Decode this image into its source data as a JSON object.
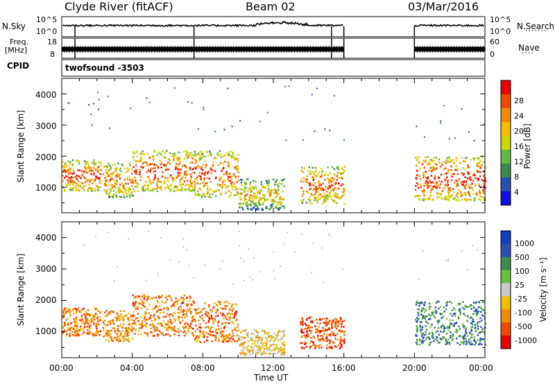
{
  "header": {
    "station": "Clyde River (fitACF)",
    "beam": "Beam 02",
    "date": "03/Mar/2016"
  },
  "panels": {
    "nsky": {
      "left_label": "N.Sky",
      "left_ticks": [
        "10^5",
        "10^0"
      ],
      "right_label": "N.Search",
      "right_ticks": [
        "10^5",
        "10^0"
      ]
    },
    "freq": {
      "left_label_1": "Freq.",
      "left_label_2": "[MHz]",
      "left_ticks": [
        "18",
        "8"
      ],
      "right_label": "Nave",
      "right_ticks": [
        "60",
        "0"
      ]
    },
    "cpid": {
      "label": "CPID",
      "value": "twofsound  -3503"
    }
  },
  "colors": {
    "power_scale": [
      "#1010e0",
      "#2a4fb0",
      "#3d8a4e",
      "#66b84a",
      "#c8d800",
      "#f0c000",
      "#f08a00",
      "#f04a00",
      "#e80000"
    ],
    "velocity_scale": [
      "#e80000",
      "#f04a00",
      "#f08a00",
      "#f0c000",
      "#c8c8c8",
      "#66c040",
      "#3d8a4e",
      "#2a4fb0",
      "#1040c0"
    ]
  },
  "chart_data": [
    {
      "type": "heatmap",
      "title": "Power",
      "ylabel": "Slant Range [km]",
      "xlabel": "Time UT",
      "x_tick_labels": [
        "00:00",
        "04:00",
        "08:00",
        "12:00",
        "16:00",
        "20:00",
        "00:00"
      ],
      "y_tick_labels": [
        "1000",
        "2000",
        "3000",
        "4000"
      ],
      "xlim_hours": [
        0,
        24
      ],
      "ylim_km": [
        180,
        4500
      ],
      "colorbar_label": "Power [dB]",
      "colorbar_ticks": [
        "4",
        "8",
        "12",
        "16",
        "20",
        "24",
        "28"
      ],
      "colorbar_range": [
        0,
        30
      ],
      "data_gaps_hours": [
        [
          16,
          20
        ]
      ],
      "scatter_regions": [
        {
          "x": [
            0.0,
            2.2
          ],
          "y": [
            900,
            1900
          ],
          "level": 0.75
        },
        {
          "x": [
            2.3,
            4.0
          ],
          "y": [
            700,
            1800
          ],
          "level": 0.6
        },
        {
          "x": [
            4.0,
            7.5
          ],
          "y": [
            900,
            2200
          ],
          "level": 0.75
        },
        {
          "x": [
            7.5,
            10.0
          ],
          "y": [
            700,
            2200
          ],
          "level": 0.7
        },
        {
          "x": [
            10.0,
            12.6
          ],
          "y": [
            300,
            1300
          ],
          "level": 0.35
        },
        {
          "x": [
            13.5,
            16.0
          ],
          "y": [
            500,
            1700
          ],
          "level": 0.65
        },
        {
          "x": [
            20.0,
            24.0
          ],
          "y": [
            600,
            2000
          ],
          "level": 0.85
        }
      ]
    },
    {
      "type": "heatmap",
      "title": "Velocity",
      "ylabel": "Slant Range [km]",
      "xlabel": "Time UT",
      "x_tick_labels": [
        "00:00",
        "04:00",
        "08:00",
        "12:00",
        "16:00",
        "20:00",
        "00:00"
      ],
      "y_tick_labels": [
        "1000",
        "2000",
        "3000",
        "4000"
      ],
      "xlim_hours": [
        0,
        24
      ],
      "ylim_km": [
        180,
        4500
      ],
      "colorbar_label": "Velocity [m s⁻¹]",
      "colorbar_ticks": [
        "1000",
        "500",
        "100",
        "25",
        "-25",
        "-100",
        "-500",
        "-1000"
      ],
      "colorbar_range": [
        -1000,
        1000
      ],
      "data_gaps_hours": [
        [
          16,
          20
        ]
      ],
      "scatter_regions": [
        {
          "x": [
            0.0,
            2.2
          ],
          "y": [
            900,
            1800
          ],
          "level": -0.55
        },
        {
          "x": [
            2.3,
            4.0
          ],
          "y": [
            700,
            1700
          ],
          "level": -0.45
        },
        {
          "x": [
            4.0,
            7.5
          ],
          "y": [
            900,
            2200
          ],
          "level": -0.55
        },
        {
          "x": [
            7.5,
            10.0
          ],
          "y": [
            700,
            2000
          ],
          "level": -0.6
        },
        {
          "x": [
            10.0,
            12.6
          ],
          "y": [
            300,
            1100
          ],
          "level": -0.2
        },
        {
          "x": [
            13.5,
            16.0
          ],
          "y": [
            500,
            1500
          ],
          "level": -0.75
        },
        {
          "x": [
            20.0,
            24.0
          ],
          "y": [
            600,
            2000
          ],
          "level": 0.55
        }
      ]
    }
  ]
}
